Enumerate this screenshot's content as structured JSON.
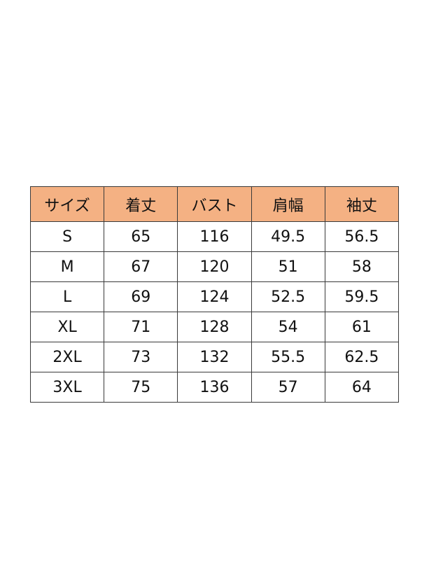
{
  "colors": {
    "header_bg": "#F4B183",
    "border": "#3a3a3a"
  },
  "table": {
    "headers": [
      "サイズ",
      "着丈",
      "バスト",
      "肩幅",
      "袖丈"
    ],
    "rows": [
      [
        "S",
        "65",
        "116",
        "49.5",
        "56.5"
      ],
      [
        "M",
        "67",
        "120",
        "51",
        "58"
      ],
      [
        "L",
        "69",
        "124",
        "52.5",
        "59.5"
      ],
      [
        "XL",
        "71",
        "128",
        "54",
        "61"
      ],
      [
        "2XL",
        "73",
        "132",
        "55.5",
        "62.5"
      ],
      [
        "3XL",
        "75",
        "136",
        "57",
        "64"
      ]
    ]
  }
}
